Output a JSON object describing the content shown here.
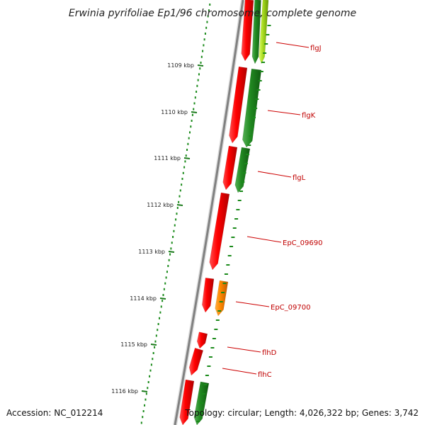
{
  "title": "Erwinia pyrifoliae Ep1/96 chromosome, complete genome",
  "footer": {
    "accession": "Accession: NC_012214",
    "summary": "Topology: circular; Length: 4,026,322 bp; Genes: 3,742"
  },
  "ticks": [
    {
      "label": "1109 kbp"
    },
    {
      "label": "1110 kbp"
    },
    {
      "label": "1111 kbp"
    },
    {
      "label": "1112 kbp"
    },
    {
      "label": "1113 kbp"
    },
    {
      "label": "1114 kbp"
    },
    {
      "label": "1115 kbp"
    },
    {
      "label": "1116 kbp"
    }
  ],
  "genes": [
    {
      "label": "flgJ",
      "color": "#99cc33"
    },
    {
      "label": "flgK",
      "color": "#228b22"
    },
    {
      "label": "flgL",
      "color": "#228b22"
    },
    {
      "label": "EpC_09690",
      "color": "#dd0000"
    },
    {
      "label": "EpC_09700",
      "color": "#ff8800"
    },
    {
      "label": "flhD",
      "color": "#dd0000"
    },
    {
      "label": "flhC",
      "color": "#dd0000"
    }
  ]
}
